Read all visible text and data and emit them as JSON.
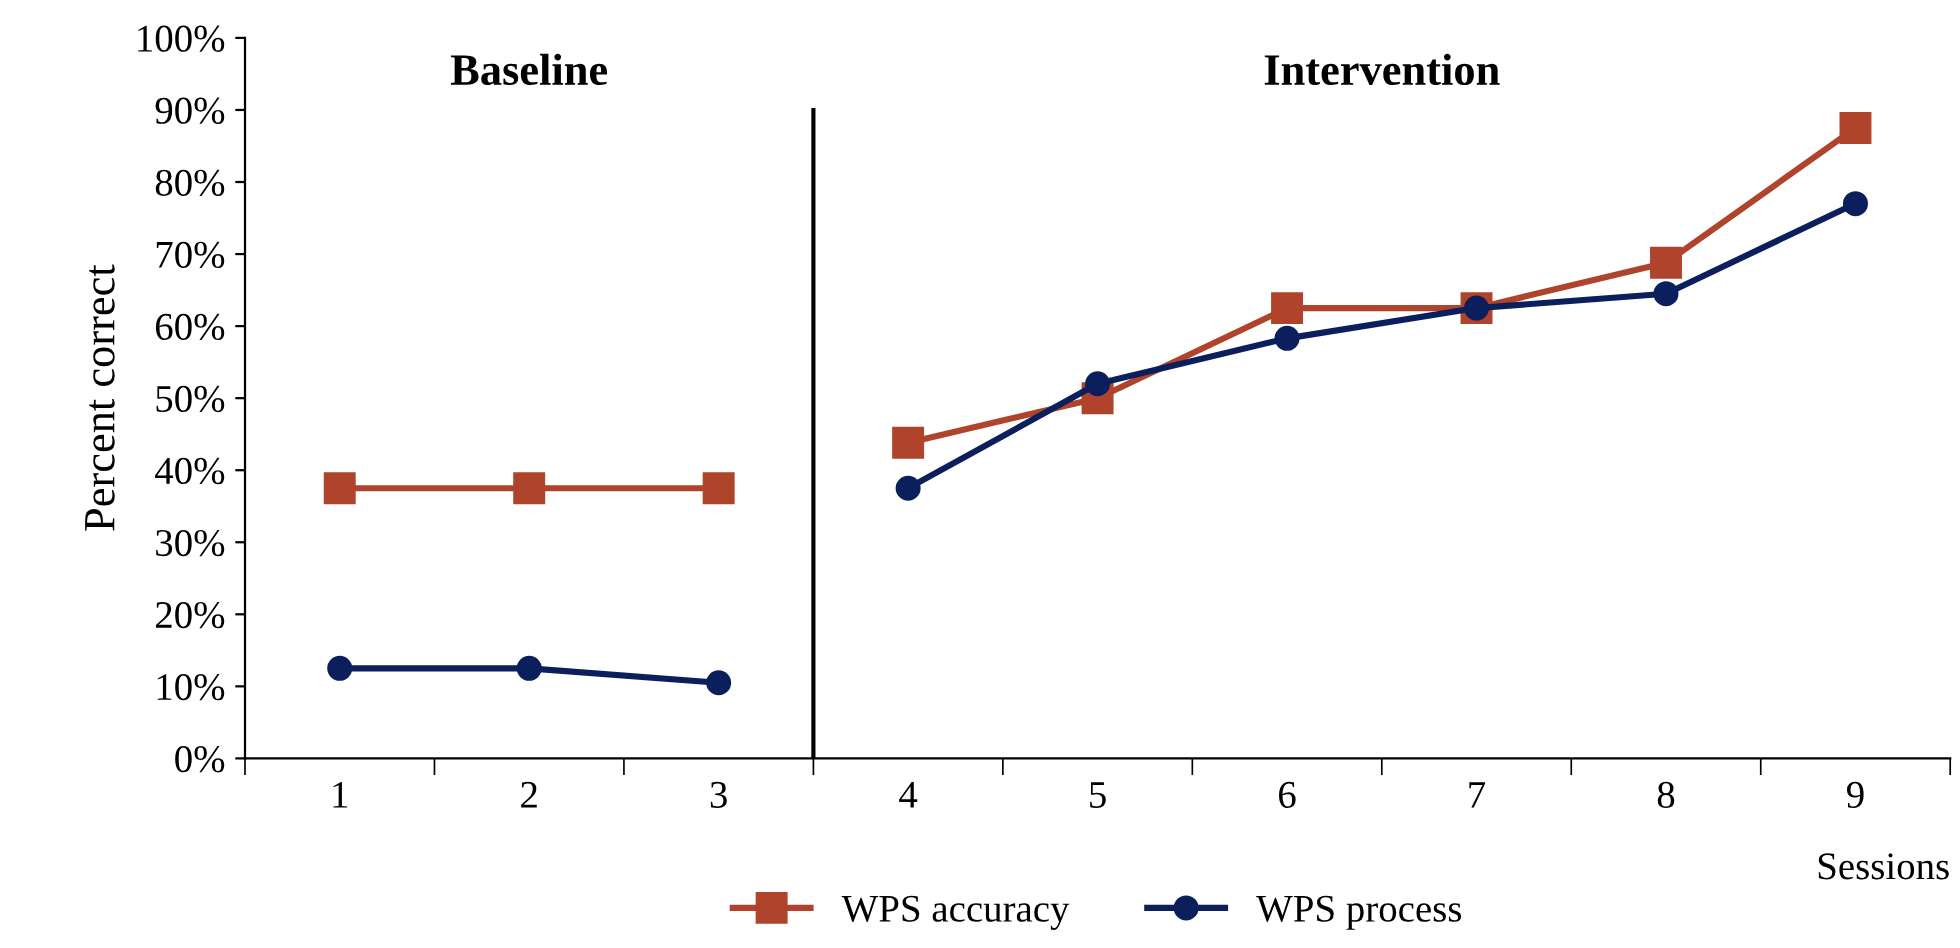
{
  "chart_data": {
    "type": "line",
    "xlabel": "Sessions",
    "ylabel": "Percent correct",
    "categories": [
      "1",
      "2",
      "3",
      "4",
      "5",
      "6",
      "7",
      "8",
      "9"
    ],
    "series": [
      {
        "name": "WPS accuracy",
        "color": "#b0432b",
        "marker": "square",
        "values": [
          37.5,
          37.5,
          37.5,
          43.8,
          50,
          62.5,
          62.5,
          68.8,
          87.5
        ]
      },
      {
        "name": "WPS process",
        "color": "#0b1f5c",
        "marker": "circle",
        "values": [
          12.5,
          12.5,
          10.5,
          37.5,
          52,
          58.3,
          62.5,
          64.5,
          77
        ]
      }
    ],
    "ylim": [
      0,
      100
    ],
    "yticks": [
      {
        "value": 0,
        "label": "0%"
      },
      {
        "value": 10,
        "label": "10%"
      },
      {
        "value": 20,
        "label": "20%"
      },
      {
        "value": 30,
        "label": "30%"
      },
      {
        "value": 40,
        "label": "40%"
      },
      {
        "value": 50,
        "label": "50%"
      },
      {
        "value": 60,
        "label": "60%"
      },
      {
        "value": 70,
        "label": "70%"
      },
      {
        "value": 80,
        "label": "80%"
      },
      {
        "value": 90,
        "label": "90%"
      },
      {
        "value": 100,
        "label": "100%"
      }
    ],
    "annotations": [
      "Baseline",
      "Intervention"
    ],
    "legend": "bottom",
    "grid": false,
    "line_style": "solid"
  }
}
